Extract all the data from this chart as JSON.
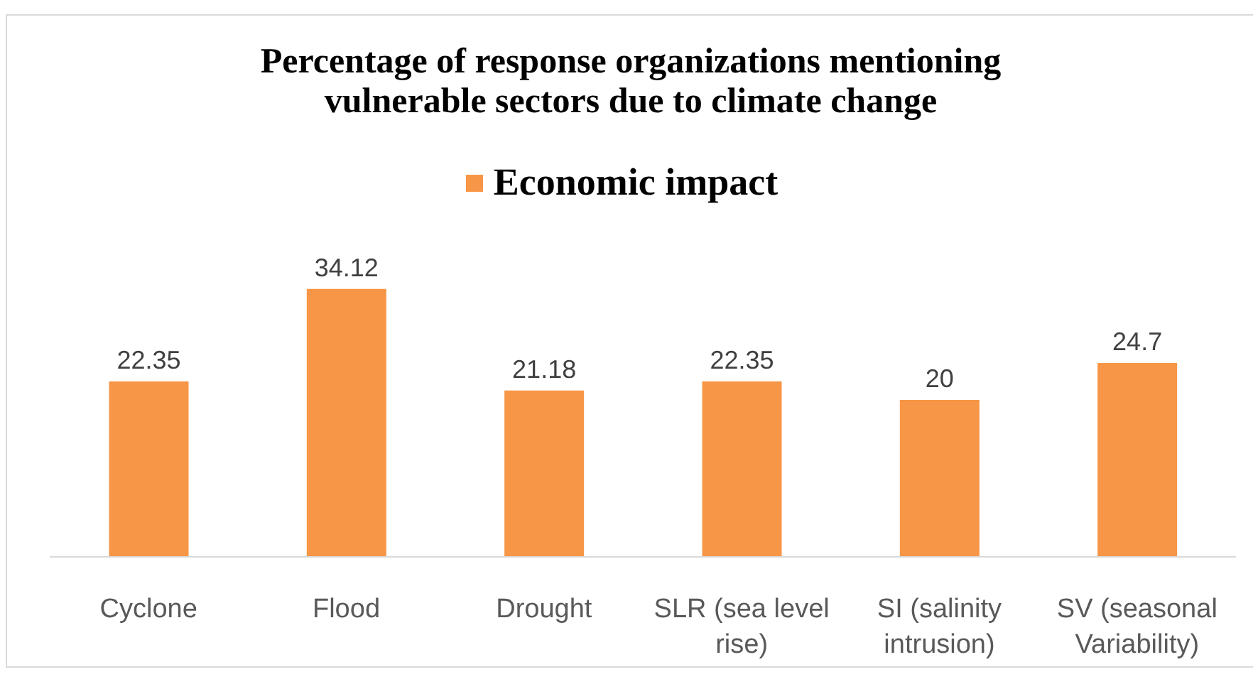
{
  "chart_data": {
    "type": "bar",
    "title": "Percentage of response organizations mentioning vulnerable sectors due to climate change",
    "categories": [
      "Cyclone",
      "Flood",
      "Drought",
      "SLR (sea level rise)",
      "SI (salinity intrusion)",
      "SV (seasonal Variability)"
    ],
    "series": [
      {
        "name": "Economic impact",
        "color": "#f79646",
        "values": [
          22.35,
          34.12,
          21.18,
          22.35,
          20,
          24.7
        ]
      }
    ],
    "data_labels": true,
    "legend": "top",
    "tick_labels": "x"
  }
}
